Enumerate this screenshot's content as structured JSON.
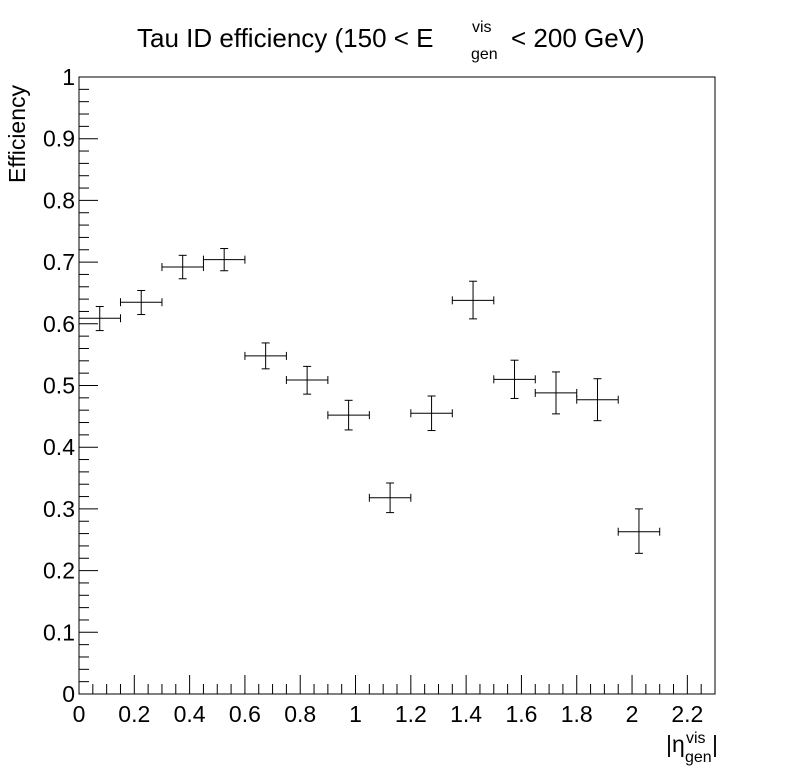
{
  "chart_data": {
    "type": "scatter",
    "title_prefix": "Tau ID efficiency (150 < E",
    "title_sup": "vis",
    "title_sub": "gen",
    "title_suffix": "< 200 GeV)",
    "xlabel_main": "|η",
    "xlabel_sup": "vis",
    "xlabel_sub": "gen",
    "xlabel_close": "|",
    "ylabel": "Efficiency",
    "xlim": [
      0,
      2.3
    ],
    "ylim": [
      0,
      1
    ],
    "x_ticks": [
      "0",
      "0.2",
      "0.4",
      "0.6",
      "0.8",
      "1",
      "1.2",
      "1.4",
      "1.6",
      "1.8",
      "2",
      "2.2"
    ],
    "y_ticks": [
      "0",
      "0.1",
      "0.2",
      "0.3",
      "0.4",
      "0.5",
      "0.6",
      "0.7",
      "0.8",
      "0.9",
      "1"
    ],
    "grid": false,
    "series": [
      {
        "points": [
          {
            "x": 0.075,
            "xerr": 0.075,
            "y": 0.609,
            "yerr_low": 0.02,
            "yerr_high": 0.019
          },
          {
            "x": 0.225,
            "xerr": 0.075,
            "y": 0.635,
            "yerr_low": 0.02,
            "yerr_high": 0.019
          },
          {
            "x": 0.375,
            "xerr": 0.075,
            "y": 0.692,
            "yerr_low": 0.019,
            "yerr_high": 0.019
          },
          {
            "x": 0.525,
            "xerr": 0.075,
            "y": 0.704,
            "yerr_low": 0.018,
            "yerr_high": 0.018
          },
          {
            "x": 0.675,
            "xerr": 0.075,
            "y": 0.548,
            "yerr_low": 0.021,
            "yerr_high": 0.021
          },
          {
            "x": 0.825,
            "xerr": 0.075,
            "y": 0.509,
            "yerr_low": 0.023,
            "yerr_high": 0.022
          },
          {
            "x": 0.975,
            "xerr": 0.075,
            "y": 0.452,
            "yerr_low": 0.024,
            "yerr_high": 0.024
          },
          {
            "x": 1.125,
            "xerr": 0.075,
            "y": 0.318,
            "yerr_low": 0.024,
            "yerr_high": 0.024
          },
          {
            "x": 1.275,
            "xerr": 0.075,
            "y": 0.455,
            "yerr_low": 0.028,
            "yerr_high": 0.028
          },
          {
            "x": 1.425,
            "xerr": 0.075,
            "y": 0.638,
            "yerr_low": 0.03,
            "yerr_high": 0.031
          },
          {
            "x": 1.575,
            "xerr": 0.075,
            "y": 0.51,
            "yerr_low": 0.031,
            "yerr_high": 0.031
          },
          {
            "x": 1.725,
            "xerr": 0.075,
            "y": 0.488,
            "yerr_low": 0.034,
            "yerr_high": 0.034
          },
          {
            "x": 1.875,
            "xerr": 0.075,
            "y": 0.477,
            "yerr_low": 0.034,
            "yerr_high": 0.034
          },
          {
            "x": 2.025,
            "xerr": 0.075,
            "y": 0.263,
            "yerr_low": 0.035,
            "yerr_high": 0.037
          }
        ]
      }
    ]
  }
}
